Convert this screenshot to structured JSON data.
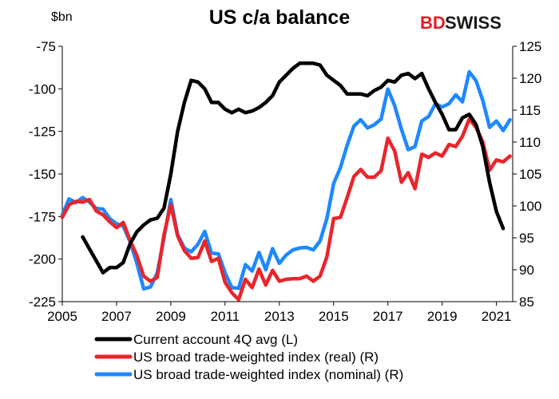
{
  "chart_data": {
    "type": "line",
    "title": "US c/a balance",
    "unit_label": "$bn",
    "logo": {
      "part1": "BD",
      "part2": "SWISS"
    },
    "x_ticks": [
      "2005",
      "2007",
      "2009",
      "2011",
      "2013",
      "2015",
      "2017",
      "2019",
      "2021"
    ],
    "xlim": [
      2005,
      2021.6
    ],
    "y_left": {
      "ticks": [
        "-75",
        "-100",
        "-125",
        "-150",
        "-175",
        "-200",
        "-225"
      ],
      "lim": [
        -225,
        -75
      ]
    },
    "y_right": {
      "ticks": [
        "125",
        "120",
        "115",
        "110",
        "105",
        "100",
        "95",
        "90",
        "85"
      ],
      "lim": [
        85,
        125
      ]
    },
    "legend": [
      {
        "label": "Current account 4Q avg (L)",
        "color": "#000000"
      },
      {
        "label": "US broad trade-weighted index (real) (R)",
        "color": "#e8262b"
      },
      {
        "label": "US broad trade-weighted index (nominal) (R)",
        "color": "#1e88ff"
      }
    ],
    "series": [
      {
        "name": "Current account 4Q avg (L)",
        "axis": "left",
        "color": "#000000",
        "points": [
          [
            2005.75,
            -187
          ],
          [
            2006.0,
            -194
          ],
          [
            2006.25,
            -201
          ],
          [
            2006.5,
            -208
          ],
          [
            2006.75,
            -205
          ],
          [
            2007.0,
            -205
          ],
          [
            2007.25,
            -202
          ],
          [
            2007.5,
            -191
          ],
          [
            2007.75,
            -184
          ],
          [
            2008.0,
            -180
          ],
          [
            2008.25,
            -177
          ],
          [
            2008.5,
            -176
          ],
          [
            2008.75,
            -170
          ],
          [
            2009.0,
            -150
          ],
          [
            2009.25,
            -125
          ],
          [
            2009.5,
            -108
          ],
          [
            2009.75,
            -95
          ],
          [
            2010.0,
            -96
          ],
          [
            2010.25,
            -100
          ],
          [
            2010.5,
            -108
          ],
          [
            2010.75,
            -108
          ],
          [
            2011.0,
            -112
          ],
          [
            2011.25,
            -114
          ],
          [
            2011.5,
            -112
          ],
          [
            2011.75,
            -114
          ],
          [
            2012.0,
            -113
          ],
          [
            2012.25,
            -111
          ],
          [
            2012.5,
            -108
          ],
          [
            2012.75,
            -104
          ],
          [
            2013.0,
            -96
          ],
          [
            2013.25,
            -92
          ],
          [
            2013.5,
            -88
          ],
          [
            2013.75,
            -85
          ],
          [
            2014.0,
            -85
          ],
          [
            2014.25,
            -85
          ],
          [
            2014.5,
            -86
          ],
          [
            2014.75,
            -92
          ],
          [
            2015.0,
            -95
          ],
          [
            2015.25,
            -98
          ],
          [
            2015.5,
            -103
          ],
          [
            2015.75,
            -103
          ],
          [
            2016.0,
            -103
          ],
          [
            2016.25,
            -104
          ],
          [
            2016.5,
            -101
          ],
          [
            2016.75,
            -99
          ],
          [
            2017.0,
            -95
          ],
          [
            2017.25,
            -96
          ],
          [
            2017.5,
            -92
          ],
          [
            2017.75,
            -91
          ],
          [
            2018.0,
            -94
          ],
          [
            2018.25,
            -91
          ],
          [
            2018.5,
            -100
          ],
          [
            2018.75,
            -108
          ],
          [
            2019.0,
            -115
          ],
          [
            2019.25,
            -124
          ],
          [
            2019.5,
            -124
          ],
          [
            2019.75,
            -117
          ],
          [
            2020.0,
            -115
          ],
          [
            2020.25,
            -121
          ],
          [
            2020.5,
            -134
          ],
          [
            2020.75,
            -155
          ],
          [
            2021.0,
            -172
          ],
          [
            2021.25,
            -182
          ]
        ]
      },
      {
        "name": "US broad trade-weighted index (real) (R)",
        "axis": "right",
        "color": "#e8262b",
        "points": [
          [
            2005.0,
            98.2
          ],
          [
            2005.25,
            100.2
          ],
          [
            2005.5,
            100.7
          ],
          [
            2005.75,
            100.6
          ],
          [
            2006.0,
            101.0
          ],
          [
            2006.25,
            99.2
          ],
          [
            2006.5,
            98.6
          ],
          [
            2006.75,
            97.5
          ],
          [
            2007.0,
            96.6
          ],
          [
            2007.25,
            97.4
          ],
          [
            2007.5,
            94.6
          ],
          [
            2007.75,
            92.2
          ],
          [
            2008.0,
            89.0
          ],
          [
            2008.25,
            88.2
          ],
          [
            2008.5,
            88.8
          ],
          [
            2008.75,
            95.5
          ],
          [
            2009.0,
            100.2
          ],
          [
            2009.25,
            95.3
          ],
          [
            2009.5,
            93.0
          ],
          [
            2009.75,
            91.8
          ],
          [
            2010.0,
            91.9
          ],
          [
            2010.25,
            94.5
          ],
          [
            2010.5,
            91.3
          ],
          [
            2010.75,
            91.8
          ],
          [
            2011.0,
            88.0
          ],
          [
            2011.25,
            86.4
          ],
          [
            2011.5,
            85.3
          ],
          [
            2011.75,
            88.5
          ],
          [
            2012.0,
            87.2
          ],
          [
            2012.25,
            90.1
          ],
          [
            2012.5,
            87.6
          ],
          [
            2012.75,
            89.9
          ],
          [
            2013.0,
            88.2
          ],
          [
            2013.25,
            88.5
          ],
          [
            2013.5,
            88.6
          ],
          [
            2013.75,
            88.6
          ],
          [
            2014.0,
            89.0
          ],
          [
            2014.25,
            88.2
          ],
          [
            2014.5,
            89.0
          ],
          [
            2014.75,
            92.0
          ],
          [
            2015.0,
            98.0
          ],
          [
            2015.25,
            98.2
          ],
          [
            2015.5,
            101.3
          ],
          [
            2015.75,
            104.6
          ],
          [
            2016.0,
            105.7
          ],
          [
            2016.25,
            104.5
          ],
          [
            2016.5,
            104.5
          ],
          [
            2016.75,
            105.5
          ],
          [
            2017.0,
            110.6
          ],
          [
            2017.25,
            108.6
          ],
          [
            2017.5,
            103.7
          ],
          [
            2017.75,
            105.2
          ],
          [
            2018.0,
            102.7
          ],
          [
            2018.25,
            108.1
          ],
          [
            2018.5,
            107.6
          ],
          [
            2018.75,
            108.3
          ],
          [
            2019.0,
            107.8
          ],
          [
            2019.25,
            109.6
          ],
          [
            2019.5,
            109.3
          ],
          [
            2019.75,
            110.9
          ],
          [
            2020.0,
            113.6
          ],
          [
            2020.25,
            112.3
          ],
          [
            2020.5,
            110.0
          ],
          [
            2020.75,
            105.6
          ],
          [
            2021.0,
            107.2
          ],
          [
            2021.25,
            106.9
          ],
          [
            2021.5,
            107.8
          ]
        ]
      },
      {
        "name": "US broad trade-weighted index (nominal) (R)",
        "axis": "right",
        "color": "#1e88ff",
        "points": [
          [
            2005.0,
            98.6
          ],
          [
            2005.25,
            101.1
          ],
          [
            2005.5,
            100.5
          ],
          [
            2005.75,
            101.3
          ],
          [
            2006.0,
            100.6
          ],
          [
            2006.25,
            99.6
          ],
          [
            2006.5,
            99.5
          ],
          [
            2006.75,
            98.0
          ],
          [
            2007.0,
            97.2
          ],
          [
            2007.25,
            96.8
          ],
          [
            2007.5,
            94.4
          ],
          [
            2007.75,
            91.0
          ],
          [
            2008.0,
            87.0
          ],
          [
            2008.25,
            87.3
          ],
          [
            2008.5,
            89.5
          ],
          [
            2008.75,
            95.0
          ],
          [
            2009.0,
            101.0
          ],
          [
            2009.25,
            95.5
          ],
          [
            2009.5,
            93.4
          ],
          [
            2009.75,
            92.8
          ],
          [
            2010.0,
            94.0
          ],
          [
            2010.25,
            96.0
          ],
          [
            2010.5,
            92.6
          ],
          [
            2010.75,
            92.5
          ],
          [
            2011.0,
            89.5
          ],
          [
            2011.25,
            87.2
          ],
          [
            2011.5,
            87.1
          ],
          [
            2011.75,
            90.8
          ],
          [
            2012.0,
            89.8
          ],
          [
            2012.25,
            92.7
          ],
          [
            2012.5,
            90.0
          ],
          [
            2012.75,
            93.3
          ],
          [
            2013.0,
            91.0
          ],
          [
            2013.25,
            92.3
          ],
          [
            2013.5,
            93.1
          ],
          [
            2013.75,
            93.4
          ],
          [
            2014.0,
            93.5
          ],
          [
            2014.25,
            93.1
          ],
          [
            2014.5,
            94.5
          ],
          [
            2014.75,
            98.0
          ],
          [
            2015.0,
            103.5
          ],
          [
            2015.25,
            106.0
          ],
          [
            2015.5,
            109.5
          ],
          [
            2015.75,
            112.5
          ],
          [
            2016.0,
            113.5
          ],
          [
            2016.25,
            112.2
          ],
          [
            2016.5,
            112.7
          ],
          [
            2016.75,
            113.6
          ],
          [
            2017.0,
            118.3
          ],
          [
            2017.25,
            115.7
          ],
          [
            2017.5,
            112.0
          ],
          [
            2017.75,
            108.8
          ],
          [
            2018.0,
            109.3
          ],
          [
            2018.25,
            113.3
          ],
          [
            2018.5,
            114.0
          ],
          [
            2018.75,
            116.0
          ],
          [
            2019.0,
            115.5
          ],
          [
            2019.25,
            116.0
          ],
          [
            2019.5,
            117.4
          ],
          [
            2019.75,
            116.3
          ],
          [
            2020.0,
            121.0
          ],
          [
            2020.25,
            119.6
          ],
          [
            2020.5,
            116.5
          ],
          [
            2020.75,
            112.3
          ],
          [
            2021.0,
            113.3
          ],
          [
            2021.25,
            111.8
          ],
          [
            2021.5,
            113.5
          ]
        ]
      }
    ]
  }
}
